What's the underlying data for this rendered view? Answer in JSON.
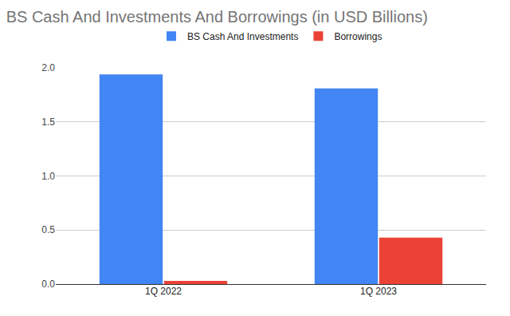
{
  "chart_data": {
    "type": "bar",
    "title": "BS Cash And Investments And Borrowings (in USD Billions)",
    "categories": [
      "1Q 2022",
      "1Q 2023"
    ],
    "series": [
      {
        "name": "BS Cash And Investments",
        "color": "#4285f4",
        "values": [
          1.94,
          1.81
        ]
      },
      {
        "name": "Borrowings",
        "color": "#ea4335",
        "values": [
          0.03,
          0.43
        ]
      }
    ],
    "ylim": [
      0,
      2.0
    ],
    "yticks": [
      {
        "value": 0,
        "label": "0.0"
      },
      0.5,
      {
        "value": 1.0,
        "label": "1.0"
      },
      1.5,
      {
        "value": 2.0,
        "label": "2.0"
      }
    ],
    "grid": true,
    "legend": "top"
  }
}
